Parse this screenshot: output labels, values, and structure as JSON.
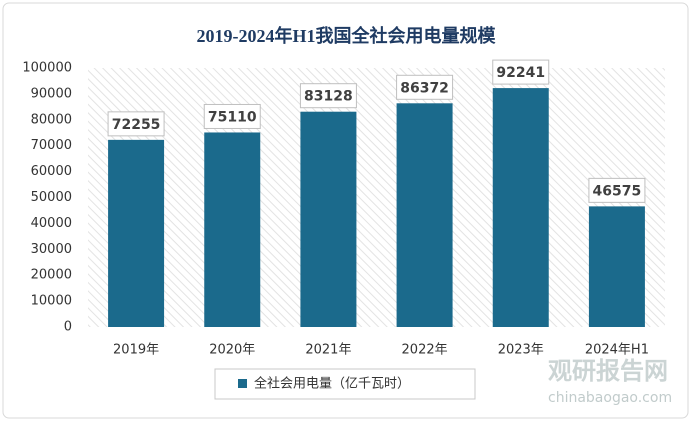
{
  "chart_data": {
    "type": "bar",
    "title": "2019-2024年H1我国全社会用电量规模",
    "categories": [
      "2019年",
      "2020年",
      "2021年",
      "2022年",
      "2023年",
      "2024年H1"
    ],
    "series": [
      {
        "name": "全社会用电量（亿千瓦时）",
        "color": "#1b6a8c",
        "values": [
          72255,
          75110,
          83128,
          86372,
          92241,
          46575
        ]
      }
    ],
    "ylim": [
      0,
      100000
    ],
    "yticks": [
      0,
      10000,
      20000,
      30000,
      40000,
      50000,
      60000,
      70000,
      80000,
      90000,
      100000
    ],
    "grid": false,
    "legend": "bottom",
    "watermark": {
      "name": "观研报告网",
      "url": "chinabaogao.com"
    }
  }
}
